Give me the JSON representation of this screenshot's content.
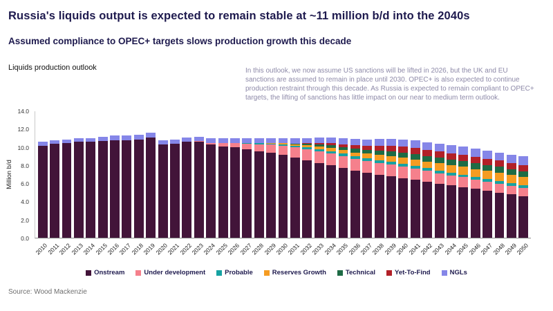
{
  "header": {
    "title": "Russia's liquids output is expected to remain stable at ~11 million b/d into the 2040s",
    "subtitle": "Assumed compliance to OPEC+ targets slows production growth this decade"
  },
  "chart": {
    "title": "Liquids production outlook",
    "annotation": "In this outlook, we now assume US sanctions will be lifted in 2026, but the UK and EU sanctions are assumed to remain in place until 2030. OPEC+ is also expected to continue production restraint through this decade. As Russia is expected to remain compliant to OPEC+ targets, the lifting of sanctions has little impact on our near to medium term outlook."
  },
  "footer": {
    "source": "Source: Wood Mackenzie"
  },
  "chart_data": {
    "type": "bar",
    "stacked": true,
    "title": "Liquids production outlook",
    "xlabel": "",
    "ylabel": "Million b/d",
    "ylim": [
      0,
      14
    ],
    "ytick_step": 2,
    "grid": false,
    "legend_position": "bottom",
    "categories": [
      "2010",
      "2011",
      "2012",
      "2013",
      "2014",
      "2015",
      "2016",
      "2017",
      "2018",
      "2019",
      "2020",
      "2021",
      "2022",
      "2023",
      "2024",
      "2025",
      "2026",
      "2027",
      "2028",
      "2029",
      "2030",
      "2031",
      "2032",
      "2033",
      "2034",
      "2035",
      "2036",
      "2037",
      "2038",
      "2039",
      "2040",
      "2041",
      "2042",
      "2043",
      "2044",
      "2045",
      "2046",
      "2047",
      "2048",
      "2049",
      "2050"
    ],
    "series": [
      {
        "name": "Onstream",
        "color": "#421439",
        "values": [
          10.2,
          10.4,
          10.5,
          10.6,
          10.6,
          10.7,
          10.8,
          10.8,
          10.9,
          11.1,
          10.3,
          10.4,
          10.6,
          10.6,
          10.3,
          10.1,
          10.0,
          9.8,
          9.6,
          9.4,
          9.2,
          8.9,
          8.6,
          8.3,
          8.0,
          7.7,
          7.4,
          7.2,
          7.0,
          6.8,
          6.6,
          6.4,
          6.2,
          6.0,
          5.8,
          5.6,
          5.4,
          5.2,
          5.0,
          4.8,
          4.6
        ]
      },
      {
        "name": "Under development",
        "color": "#f5808c",
        "values": [
          0,
          0,
          0,
          0,
          0,
          0,
          0,
          0,
          0,
          0,
          0,
          0,
          0,
          0.1,
          0.2,
          0.35,
          0.45,
          0.6,
          0.75,
          0.9,
          1.0,
          1.1,
          1.2,
          1.25,
          1.3,
          1.3,
          1.3,
          1.3,
          1.3,
          1.3,
          1.3,
          1.25,
          1.2,
          1.15,
          1.1,
          1.1,
          1.05,
          1.0,
          1.0,
          0.95,
          0.9
        ]
      },
      {
        "name": "Probable",
        "color": "#16a2a2",
        "values": [
          0,
          0,
          0,
          0,
          0,
          0,
          0,
          0,
          0,
          0,
          0,
          0,
          0,
          0,
          0,
          0,
          0,
          0.05,
          0.1,
          0.1,
          0.15,
          0.2,
          0.25,
          0.25,
          0.3,
          0.3,
          0.3,
          0.3,
          0.3,
          0.3,
          0.3,
          0.3,
          0.3,
          0.3,
          0.3,
          0.3,
          0.3,
          0.3,
          0.3,
          0.3,
          0.3
        ]
      },
      {
        "name": "Reserves Growth",
        "color": "#f59c22",
        "values": [
          0,
          0,
          0,
          0,
          0,
          0,
          0,
          0,
          0,
          0,
          0,
          0,
          0,
          0,
          0,
          0,
          0,
          0,
          0,
          0.05,
          0.1,
          0.15,
          0.2,
          0.3,
          0.35,
          0.4,
          0.45,
          0.5,
          0.55,
          0.6,
          0.65,
          0.7,
          0.75,
          0.8,
          0.8,
          0.85,
          0.85,
          0.9,
          0.9,
          0.9,
          0.9
        ]
      },
      {
        "name": "Technical",
        "color": "#1e6b45",
        "values": [
          0,
          0,
          0,
          0,
          0,
          0,
          0,
          0,
          0,
          0,
          0,
          0,
          0,
          0,
          0,
          0,
          0,
          0,
          0,
          0,
          0,
          0.05,
          0.15,
          0.25,
          0.3,
          0.35,
          0.4,
          0.45,
          0.5,
          0.55,
          0.6,
          0.6,
          0.6,
          0.6,
          0.65,
          0.65,
          0.65,
          0.65,
          0.65,
          0.65,
          0.65
        ]
      },
      {
        "name": "Yet-To-Find",
        "color": "#b22028",
        "values": [
          0,
          0,
          0,
          0,
          0,
          0,
          0,
          0,
          0,
          0,
          0,
          0,
          0,
          0,
          0,
          0,
          0,
          0,
          0,
          0,
          0,
          0,
          0.05,
          0.1,
          0.2,
          0.3,
          0.4,
          0.45,
          0.55,
          0.6,
          0.65,
          0.7,
          0.7,
          0.7,
          0.7,
          0.7,
          0.7,
          0.7,
          0.7,
          0.7,
          0.7
        ]
      },
      {
        "name": "NGLs",
        "color": "#8586e8",
        "values": [
          0.4,
          0.4,
          0.4,
          0.4,
          0.45,
          0.45,
          0.5,
          0.5,
          0.5,
          0.5,
          0.5,
          0.5,
          0.5,
          0.5,
          0.5,
          0.55,
          0.55,
          0.55,
          0.55,
          0.55,
          0.6,
          0.6,
          0.6,
          0.65,
          0.65,
          0.65,
          0.7,
          0.7,
          0.75,
          0.8,
          0.8,
          0.85,
          0.85,
          0.85,
          0.9,
          0.9,
          0.9,
          0.9,
          0.9,
          0.9,
          0.95
        ]
      }
    ]
  }
}
